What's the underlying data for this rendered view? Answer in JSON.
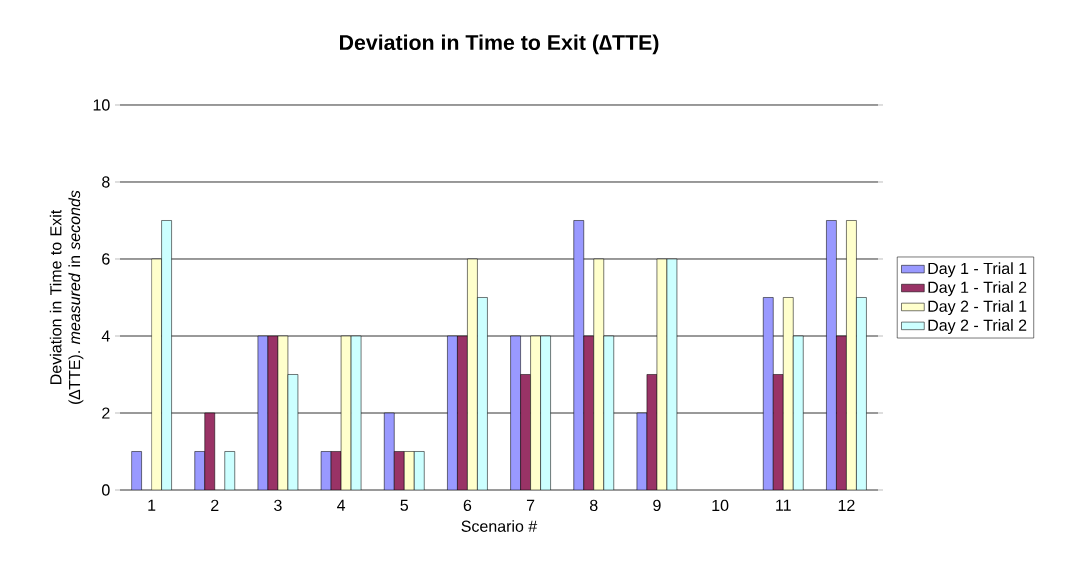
{
  "chart_data": {
    "type": "bar",
    "title": "Deviation in Time to Exit (∆TTE)",
    "xlabel": "Scenario #",
    "ylabel": "Deviation in Time to Exit (∆TTE). *measured* in *seconds*",
    "categories": [
      "1",
      "2",
      "3",
      "4",
      "5",
      "6",
      "7",
      "8",
      "9",
      "10",
      "11",
      "12"
    ],
    "series": [
      {
        "name": "Day 1 - Trial 1",
        "color": "#9999ff",
        "values": [
          1,
          1,
          4,
          1,
          2,
          4,
          4,
          7,
          2,
          0,
          5,
          7
        ]
      },
      {
        "name": "Day 1 - Trial 2",
        "color": "#993366",
        "values": [
          0,
          2,
          4,
          1,
          1,
          4,
          3,
          4,
          3,
          0,
          3,
          4
        ]
      },
      {
        "name": "Day 2 - Trial 1",
        "color": "#ffffcc",
        "values": [
          6,
          0,
          4,
          4,
          1,
          6,
          4,
          6,
          6,
          0,
          5,
          7
        ]
      },
      {
        "name": "Day 2 - Trial 2",
        "color": "#ccffff",
        "values": [
          7,
          1,
          3,
          4,
          1,
          5,
          4,
          4,
          6,
          0,
          4,
          5
        ]
      }
    ],
    "ylim": [
      0,
      10
    ],
    "yticks": [
      0,
      2,
      4,
      6,
      8,
      10
    ],
    "grid": "y",
    "legend": "right"
  }
}
